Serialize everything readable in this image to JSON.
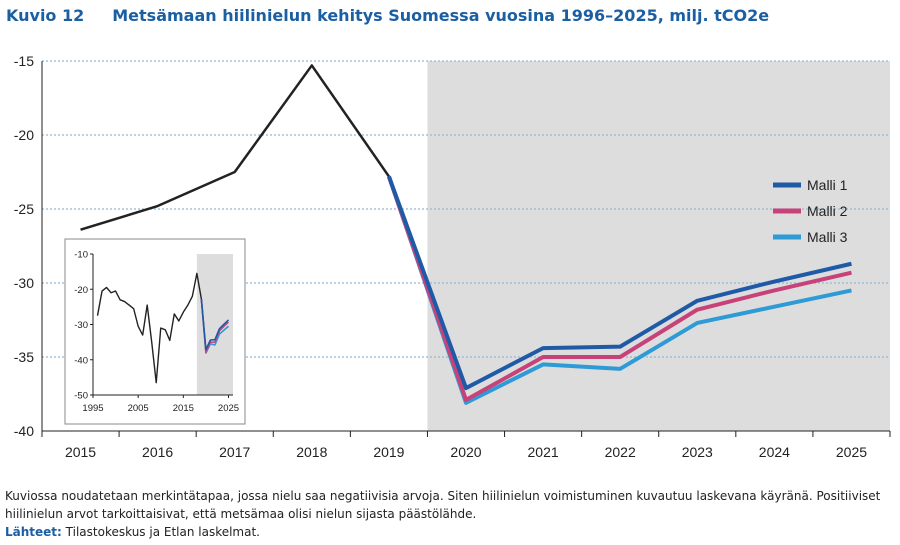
{
  "header": {
    "figure_number": "Kuvio 12",
    "title": "Metsämaan hiilinielun kehitys Suomessa vuosina 1996–2025, milj. tCO2e"
  },
  "chart_data": [
    {
      "type": "line",
      "x": [
        2015,
        2016,
        2017,
        2018,
        2019,
        2020,
        2021,
        2022,
        2023,
        2024,
        2025
      ],
      "xlim": [
        2014.5,
        2025.5
      ],
      "ylim": [
        -40,
        -15
      ],
      "yticks": [
        -15,
        -20,
        -25,
        -30,
        -35,
        -40
      ],
      "xticks": [
        2015,
        2016,
        2017,
        2018,
        2019,
        2020,
        2021,
        2022,
        2023,
        2024,
        2025
      ],
      "shaded_from": 2019.5,
      "grid": true,
      "legend_position": "right",
      "history": {
        "x": [
          2015,
          2016,
          2017,
          2018,
          2019
        ],
        "values": [
          -26.4,
          -24.8,
          -22.5,
          -15.3,
          -22.8
        ],
        "color": "#222222"
      },
      "series": [
        {
          "name": "Malli 1",
          "color": "#1f5aa6",
          "x": [
            2019,
            2020,
            2021,
            2022,
            2023,
            2024,
            2025
          ],
          "values": [
            -22.8,
            -37.1,
            -34.4,
            -34.3,
            -31.2,
            -29.9,
            -28.7
          ]
        },
        {
          "name": "Malli 2",
          "color": "#c8427a",
          "x": [
            2019,
            2020,
            2021,
            2022,
            2023,
            2024,
            2025
          ],
          "values": [
            -22.8,
            -37.9,
            -35.0,
            -35.0,
            -31.8,
            -30.5,
            -29.3
          ]
        },
        {
          "name": "Malli 3",
          "color": "#2e9ad6",
          "x": [
            2019,
            2020,
            2021,
            2022,
            2023,
            2024,
            2025
          ],
          "values": [
            -22.8,
            -38.1,
            -35.5,
            -35.8,
            -32.7,
            -31.6,
            -30.5
          ]
        }
      ]
    },
    {
      "type": "line",
      "xlim": [
        1995,
        2026
      ],
      "ylim": [
        -50,
        -10
      ],
      "yticks": [
        -10,
        -20,
        -30,
        -40,
        -50
      ],
      "xticks": [
        1995,
        2005,
        2015,
        2025
      ],
      "shaded_from": 2018,
      "grid": false,
      "history": {
        "x": [
          1996,
          1997,
          1998,
          1999,
          2000,
          2001,
          2002,
          2003,
          2004,
          2005,
          2006,
          2007,
          2008,
          2009,
          2010,
          2011,
          2012,
          2013,
          2014,
          2015,
          2016,
          2017,
          2018,
          2019
        ],
        "values": [
          -27.5,
          -20.5,
          -19.5,
          -21.0,
          -20.5,
          -23.0,
          -23.5,
          -24.5,
          -25.5,
          -30.5,
          -33.0,
          -24.5,
          -35.0,
          -46.5,
          -31.0,
          -31.5,
          -34.5,
          -27.0,
          -29.0,
          -26.5,
          -24.5,
          -22.0,
          -15.5,
          -22.8
        ],
        "color": "#222222"
      },
      "series": [
        {
          "name": "Malli 1",
          "color": "#1f5aa6",
          "x": [
            2019,
            2020,
            2021,
            2022,
            2023,
            2024,
            2025
          ],
          "values": [
            -22.8,
            -37.1,
            -34.4,
            -34.3,
            -31.2,
            -29.9,
            -28.7
          ]
        },
        {
          "name": "Malli 2",
          "color": "#c8427a",
          "x": [
            2019,
            2020,
            2021,
            2022,
            2023,
            2024,
            2025
          ],
          "values": [
            -22.8,
            -37.9,
            -35.0,
            -35.0,
            -31.8,
            -30.5,
            -29.3
          ]
        },
        {
          "name": "Malli 3",
          "color": "#2e9ad6",
          "x": [
            2019,
            2020,
            2021,
            2022,
            2023,
            2024,
            2025
          ],
          "values": [
            -22.8,
            -38.1,
            -35.5,
            -35.8,
            -32.7,
            -31.6,
            -30.5
          ]
        }
      ]
    }
  ],
  "footer": {
    "note": "Kuviossa noudatetaan merkintätapaa, jossa nielu saa negatiivisia arvoja. Siten hiilinielun voimistuminen kuvautuu laskevana käyränä. Positiiviset hiilinielun arvot tarkoittaisivat, että metsämaa olisi nielun sijasta päästölähde.",
    "sources_label": "Lähteet:",
    "sources_text": "Tilastokeskus ja Etlan laskelmat."
  }
}
